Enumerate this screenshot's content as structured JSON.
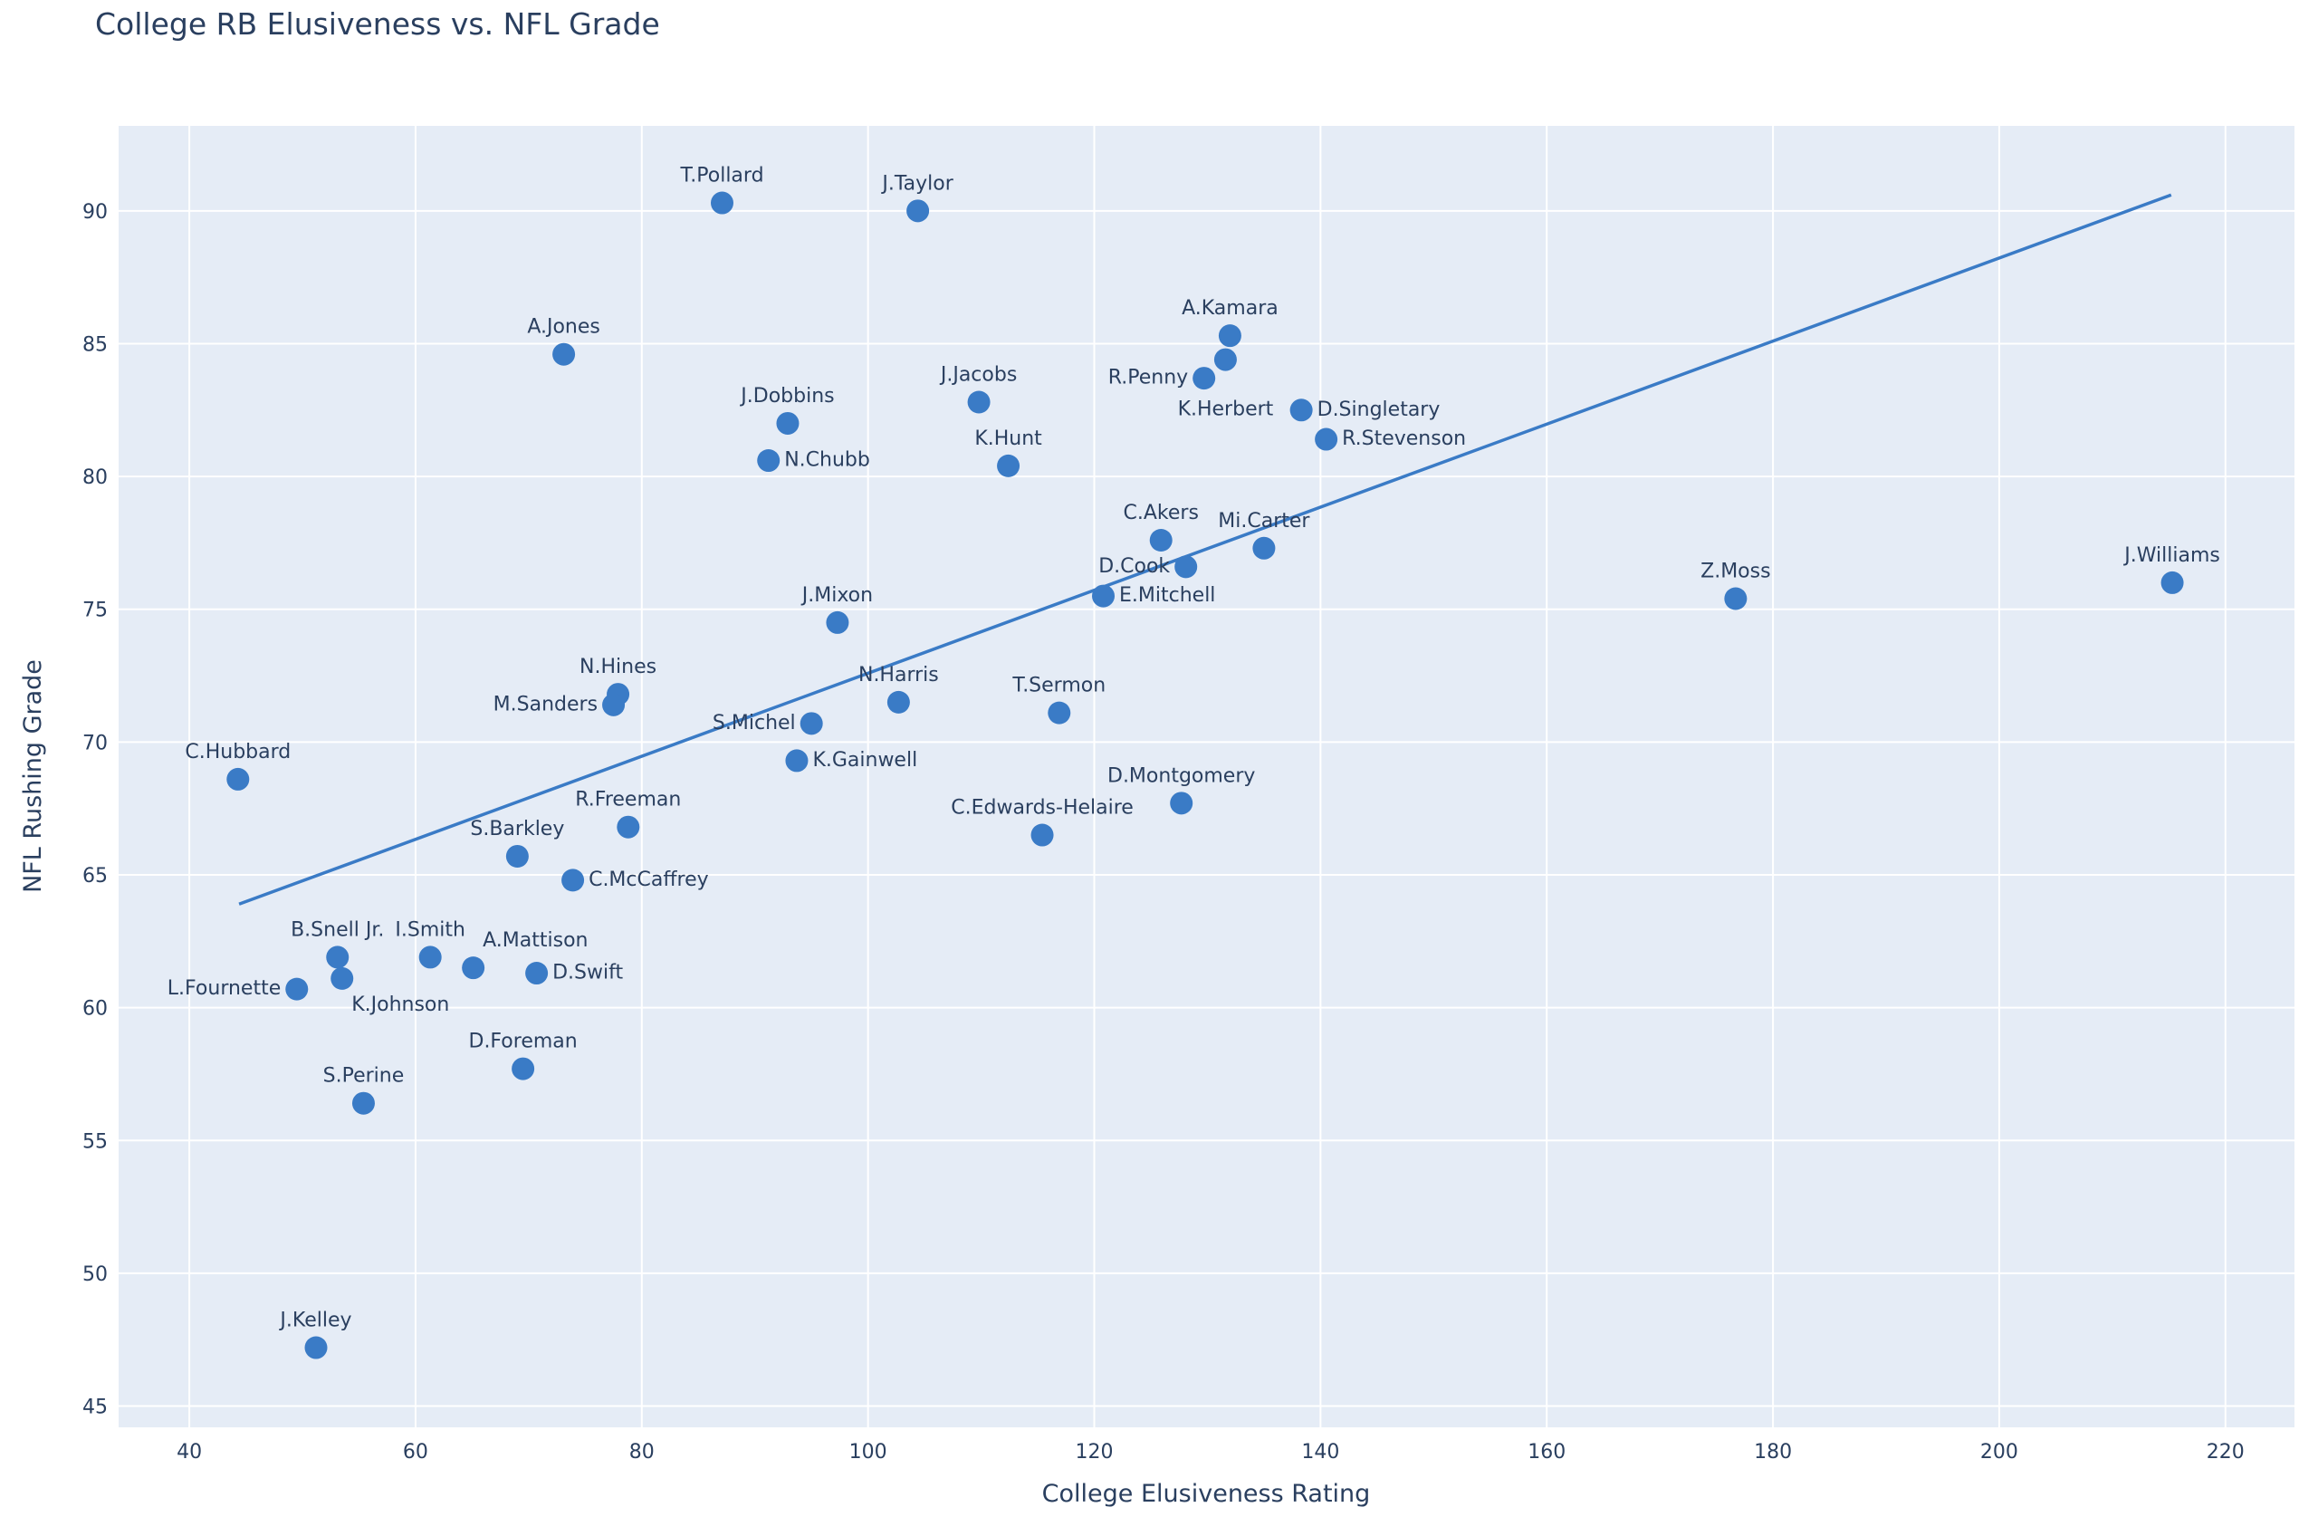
{
  "chart_data": {
    "type": "scatter",
    "title": "College RB Elusiveness vs. NFL Grade",
    "xlabel": "College Elusiveness Rating",
    "ylabel": "NFL Rushing Grade",
    "xlim": [
      33.75,
      226.1
    ],
    "ylim": [
      44.2,
      93.2
    ],
    "xticks": [
      40,
      60,
      80,
      100,
      120,
      140,
      160,
      180,
      200,
      220
    ],
    "yticks": [
      45,
      50,
      55,
      60,
      65,
      70,
      75,
      80,
      85,
      90
    ],
    "grid": true,
    "marker_color": "#3a7bc6",
    "plot_bg": "#e5ecf6",
    "points": [
      {
        "label": "T.Pollard",
        "x": 87.1,
        "y": 90.3
      },
      {
        "label": "J.Taylor",
        "x": 104.4,
        "y": 90.0
      },
      {
        "label": "A.Jones",
        "x": 73.1,
        "y": 84.6
      },
      {
        "label": "J.Dobbins",
        "x": 92.9,
        "y": 82.0
      },
      {
        "label": "N.Chubb",
        "x": 91.2,
        "y": 80.6
      },
      {
        "label": "J.Jacobs",
        "x": 109.8,
        "y": 82.8
      },
      {
        "label": "K.Hunt",
        "x": 112.4,
        "y": 80.4
      },
      {
        "label": "A.Kamara",
        "x": 132.0,
        "y": 85.3
      },
      {
        "label": "K.Herbert",
        "x": 131.6,
        "y": 84.4
      },
      {
        "label": "R.Penny",
        "x": 129.7,
        "y": 83.7
      },
      {
        "label": "D.Singletary",
        "x": 138.3,
        "y": 82.5
      },
      {
        "label": "R.Stevenson",
        "x": 140.5,
        "y": 81.4
      },
      {
        "label": "C.Akers",
        "x": 125.9,
        "y": 77.6
      },
      {
        "label": "D.Cook",
        "x": 128.1,
        "y": 76.6
      },
      {
        "label": "Mi.Carter",
        "x": 135.0,
        "y": 77.3
      },
      {
        "label": "E.Mitchell",
        "x": 120.8,
        "y": 75.5
      },
      {
        "label": "Z.Moss",
        "x": 176.7,
        "y": 75.4
      },
      {
        "label": "J.Williams",
        "x": 215.3,
        "y": 76.0
      },
      {
        "label": "J.Mixon",
        "x": 97.3,
        "y": 74.5
      },
      {
        "label": "N.Hines",
        "x": 77.9,
        "y": 71.8
      },
      {
        "label": "M.Sanders",
        "x": 77.5,
        "y": 71.4
      },
      {
        "label": "N.Harris",
        "x": 102.7,
        "y": 71.5
      },
      {
        "label": "T.Sermon",
        "x": 116.9,
        "y": 71.1
      },
      {
        "label": "S.Michel",
        "x": 95.0,
        "y": 70.7
      },
      {
        "label": "K.Gainwell",
        "x": 93.7,
        "y": 69.3
      },
      {
        "label": "C.Hubbard",
        "x": 44.3,
        "y": 68.6
      },
      {
        "label": "D.Montgomery",
        "x": 127.7,
        "y": 67.7
      },
      {
        "label": "R.Freeman",
        "x": 78.8,
        "y": 66.8
      },
      {
        "label": "C.Edwards-Helaire",
        "x": 115.4,
        "y": 66.5
      },
      {
        "label": "S.Barkley",
        "x": 69.0,
        "y": 65.7
      },
      {
        "label": "C.McCaffrey",
        "x": 73.9,
        "y": 64.8
      },
      {
        "label": "B.Snell Jr.",
        "x": 53.1,
        "y": 61.9
      },
      {
        "label": "I.Smith",
        "x": 61.3,
        "y": 61.9
      },
      {
        "label": "A.Mattison",
        "x": 65.1,
        "y": 61.5
      },
      {
        "label": "D.Swift",
        "x": 70.7,
        "y": 61.3
      },
      {
        "label": "K.Johnson",
        "x": 53.5,
        "y": 61.1
      },
      {
        "label": "L.Fournette",
        "x": 49.5,
        "y": 60.7
      },
      {
        "label": "D.Foreman",
        "x": 69.5,
        "y": 57.7
      },
      {
        "label": "S.Perine",
        "x": 55.4,
        "y": 56.4
      },
      {
        "label": "J.Kelley",
        "x": 51.2,
        "y": 47.2
      }
    ],
    "trendline": {
      "x": [
        44.4,
        215.2
      ],
      "y": [
        63.9,
        90.6
      ]
    }
  }
}
